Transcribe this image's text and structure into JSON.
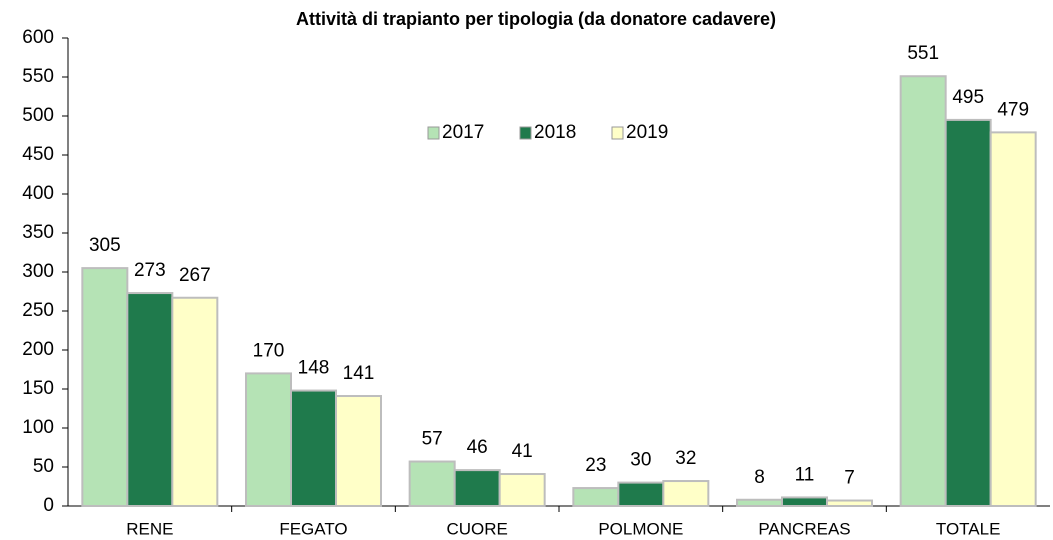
{
  "chart_data": {
    "type": "bar",
    "title": "Attività di trapianto  per tipologia  (da donatore cadavere)",
    "categories": [
      "RENE",
      "FEGATO",
      "CUORE",
      "POLMONE",
      "PANCREAS",
      "TOTALE"
    ],
    "series": [
      {
        "name": "2017",
        "color": "#b5e3b5",
        "values": [
          305,
          170,
          57,
          23,
          8,
          551
        ]
      },
      {
        "name": "2018",
        "color": "#1f7a4c",
        "values": [
          273,
          148,
          46,
          30,
          11,
          495
        ]
      },
      {
        "name": "2019",
        "color": "#ffffc8",
        "values": [
          267,
          141,
          41,
          32,
          7,
          479
        ]
      }
    ],
    "ylim": [
      0,
      600
    ],
    "yticks": [
      0,
      50,
      100,
      150,
      200,
      250,
      300,
      350,
      400,
      450,
      500,
      550,
      600
    ],
    "grid": false,
    "legend": "top"
  }
}
